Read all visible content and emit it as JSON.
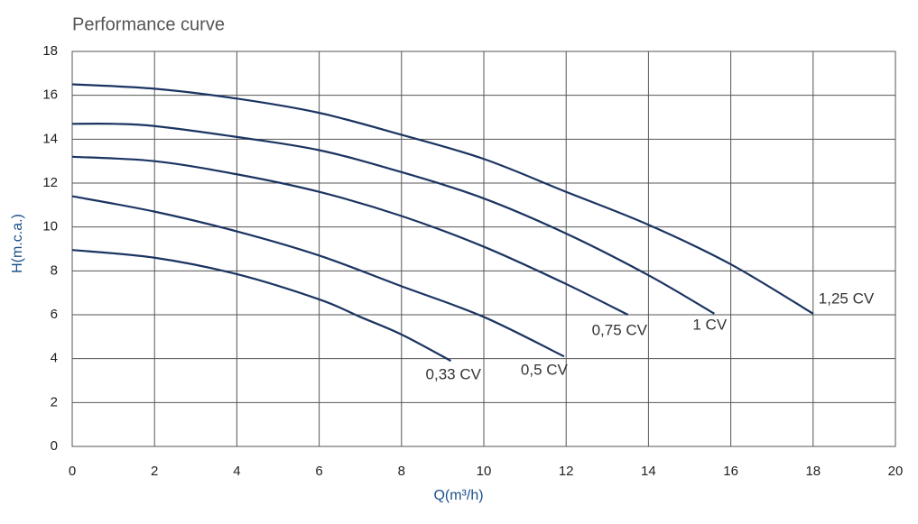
{
  "chart_data": {
    "type": "line",
    "title": "Performance curve",
    "xlabel": "Q(m³/h)",
    "ylabel": "H(m.c.a.)",
    "xlim": [
      0,
      20
    ],
    "xticks": [
      0,
      2,
      4,
      6,
      8,
      10,
      12,
      14,
      16,
      18,
      20
    ],
    "ylim": [
      0,
      18
    ],
    "yticks": [
      0,
      2,
      4,
      6,
      8,
      10,
      12,
      14,
      16,
      18
    ],
    "grid": true,
    "series": [
      {
        "name": "0,33 CV",
        "color": "#1b3461",
        "x": [
          0,
          2,
          4,
          6,
          7,
          8,
          9.2
        ],
        "values": [
          8.95,
          8.6,
          7.85,
          6.7,
          5.9,
          5.1,
          3.9
        ]
      },
      {
        "name": "0,5 CV",
        "color": "#1b3461",
        "x": [
          0,
          2,
          4,
          6,
          8,
          10,
          11.95
        ],
        "values": [
          11.4,
          10.7,
          9.8,
          8.7,
          7.3,
          5.9,
          4.1
        ]
      },
      {
        "name": "0,75 CV",
        "color": "#1b3461",
        "x": [
          0,
          2,
          4,
          6,
          8,
          10,
          12,
          13.5
        ],
        "values": [
          13.2,
          13.0,
          12.4,
          11.6,
          10.5,
          9.1,
          7.4,
          6.0
        ]
      },
      {
        "name": "1 CV",
        "color": "#1b3461",
        "x": [
          0,
          1,
          2,
          4,
          6,
          8,
          10,
          12,
          14,
          15.6
        ],
        "values": [
          14.7,
          14.7,
          14.6,
          14.1,
          13.5,
          12.5,
          11.3,
          9.7,
          7.8,
          6.05
        ]
      },
      {
        "name": "1,25 CV",
        "color": "#1b3461",
        "x": [
          0,
          2,
          4,
          6,
          8,
          10,
          12,
          14,
          16,
          18
        ],
        "values": [
          16.5,
          16.3,
          15.85,
          15.2,
          14.2,
          13.1,
          11.6,
          10.1,
          8.3,
          6.05
        ]
      }
    ]
  }
}
